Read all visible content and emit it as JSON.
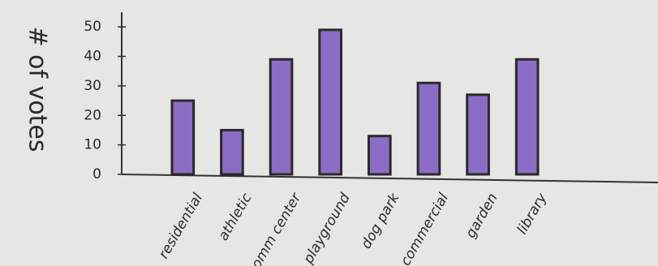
{
  "chart_data": {
    "type": "bar",
    "y_label": "# of votes",
    "categories": [
      "residential",
      "athletic",
      "comm center",
      "playground",
      "dog park",
      "commercial",
      "garden",
      "library"
    ],
    "values": [
      25,
      15,
      39,
      49,
      13,
      31,
      27,
      39
    ],
    "color": "#8b6cc4",
    "ylim": [
      0,
      55
    ],
    "yticks": [
      0,
      10,
      20,
      30,
      40,
      50
    ],
    "grid": false
  }
}
